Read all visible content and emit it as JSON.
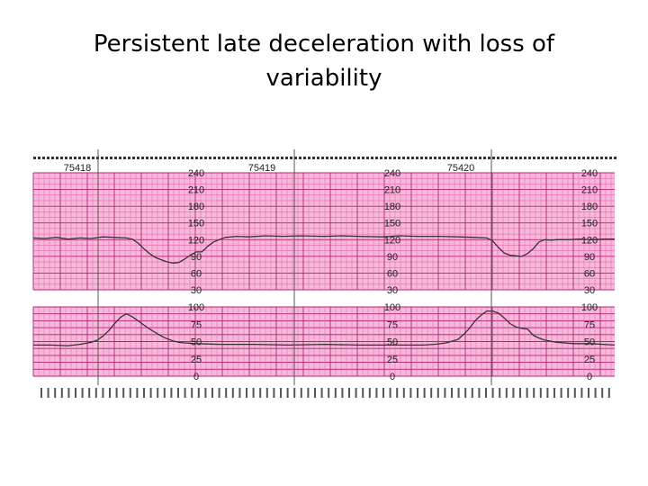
{
  "title": {
    "line1": "Persistent late deceleration with loss of",
    "line2": "variability"
  },
  "colors": {
    "paper": "#f7b8d9",
    "grid_minor": "#e05aa6",
    "grid_major": "#b02276",
    "trace": "#333333",
    "background": "#ffffff"
  },
  "chart_data": [
    {
      "type": "line",
      "name": "fetal-heart-rate",
      "page_numbers": [
        "75418",
        "75419",
        "75420"
      ],
      "y_ticks": [
        "240",
        "210",
        "180",
        "150",
        "120",
        "90",
        "60",
        "30"
      ],
      "ylim": [
        30,
        240
      ],
      "x_range": [
        0,
        100
      ],
      "series": [
        {
          "points": [
            [
              0,
              123
            ],
            [
              2,
              122
            ],
            [
              4,
              124
            ],
            [
              6,
              121
            ],
            [
              8,
              123
            ],
            [
              10,
              122
            ],
            [
              12,
              125
            ],
            [
              14,
              124
            ],
            [
              16,
              123
            ],
            [
              17,
              121
            ],
            [
              18,
              114
            ],
            [
              19,
              104
            ],
            [
              20,
              95
            ],
            [
              21,
              88
            ],
            [
              22,
              84
            ],
            [
              23,
              80
            ],
            [
              24,
              78
            ],
            [
              25,
              79
            ],
            [
              26,
              85
            ],
            [
              27,
              92
            ],
            [
              28,
              98
            ],
            [
              29,
              98
            ],
            [
              30,
              108
            ],
            [
              31,
              116
            ],
            [
              32,
              120
            ],
            [
              33,
              124
            ],
            [
              35,
              126
            ],
            [
              37,
              125
            ],
            [
              40,
              127
            ],
            [
              43,
              126
            ],
            [
              46,
              127
            ],
            [
              50,
              126
            ],
            [
              53,
              127
            ],
            [
              56,
              126
            ],
            [
              60,
              125
            ],
            [
              63,
              127
            ],
            [
              66,
              126
            ],
            [
              70,
              126
            ],
            [
              73,
              125
            ],
            [
              76,
              124
            ],
            [
              78,
              123
            ],
            [
              79,
              118
            ],
            [
              80,
              106
            ],
            [
              81,
              96
            ],
            [
              82,
              92
            ],
            [
              83,
              91
            ],
            [
              84,
              90
            ],
            [
              85,
              95
            ],
            [
              86,
              104
            ],
            [
              87,
              116
            ],
            [
              88,
              120
            ],
            [
              89,
              119
            ],
            [
              90,
              120
            ],
            [
              92,
              120
            ],
            [
              94,
              121
            ],
            [
              96,
              120
            ],
            [
              98,
              121
            ],
            [
              100,
              121
            ]
          ]
        }
      ]
    },
    {
      "type": "line",
      "name": "uterine-activity",
      "y_ticks": [
        "100",
        "75",
        "50",
        "25",
        "0"
      ],
      "ylim": [
        0,
        100
      ],
      "x_range": [
        0,
        100
      ],
      "series": [
        {
          "points": [
            [
              0,
              45
            ],
            [
              3,
              45
            ],
            [
              6,
              44
            ],
            [
              8,
              46
            ],
            [
              10,
              49
            ],
            [
              11,
              52
            ],
            [
              12,
              58
            ],
            [
              13,
              66
            ],
            [
              14,
              76
            ],
            [
              15,
              85
            ],
            [
              16,
              90
            ],
            [
              17,
              86
            ],
            [
              18,
              80
            ],
            [
              19,
              74
            ],
            [
              20,
              68
            ],
            [
              21,
              63
            ],
            [
              22,
              58
            ],
            [
              23,
              54
            ],
            [
              24,
              51
            ],
            [
              25,
              49
            ],
            [
              26,
              48
            ],
            [
              28,
              47
            ],
            [
              32,
              46
            ],
            [
              38,
              46
            ],
            [
              44,
              45
            ],
            [
              50,
              46
            ],
            [
              56,
              45
            ],
            [
              62,
              45
            ],
            [
              67,
              45
            ],
            [
              69,
              46
            ],
            [
              71,
              48
            ],
            [
              73,
              53
            ],
            [
              74,
              60
            ],
            [
              75,
              69
            ],
            [
              76,
              80
            ],
            [
              77,
              88
            ],
            [
              78,
              94
            ],
            [
              79,
              94
            ],
            [
              80,
              91
            ],
            [
              81,
              84
            ],
            [
              82,
              76
            ],
            [
              83,
              71
            ],
            [
              84,
              69
            ],
            [
              85,
              68
            ],
            [
              86,
              59
            ],
            [
              87,
              55
            ],
            [
              88,
              52
            ],
            [
              90,
              49
            ],
            [
              93,
              47
            ],
            [
              96,
              47
            ],
            [
              98,
              46
            ],
            [
              100,
              45
            ]
          ]
        }
      ]
    }
  ]
}
